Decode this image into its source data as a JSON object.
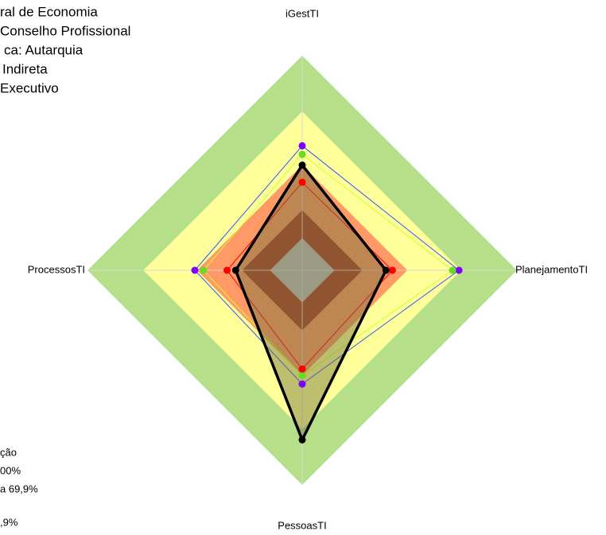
{
  "chart_data": {
    "type": "radar",
    "categories": [
      "iGestTI",
      "PlanejamentoTI",
      "PessoasTI",
      "ProcessosTI"
    ],
    "ylim": [
      0,
      100
    ],
    "bands": [
      {
        "value": 100,
        "color": "#b5df88"
      },
      {
        "value": 74,
        "color": "#ffff99"
      },
      {
        "value": 49,
        "color": "#ff9966"
      },
      {
        "value": 28,
        "color": "#b04028"
      },
      {
        "value": 15,
        "color": "#c0c0c0"
      }
    ],
    "series": [
      {
        "color": "#3355ff",
        "marker_color": "#8000ff",
        "values": [
          58,
          73,
          53,
          50
        ]
      },
      {
        "color": "#ccff33",
        "marker_color": "#66dd22",
        "values": [
          54,
          70,
          49,
          46
        ]
      },
      {
        "color": "#ff0000",
        "marker_color": "#ff0000",
        "values": [
          41,
          42,
          46,
          35
        ]
      },
      {
        "color": "#000000",
        "marker_color": "#000000",
        "fill": "rgba(110,110,60,0.45)",
        "values": [
          49,
          39,
          79,
          31
        ]
      }
    ],
    "annotations": [
      "ral de Economia",
      "Conselho Profissional",
      "ca: Autarquia",
      "Indireta",
      "Executivo"
    ],
    "legend_texts": [
      "ção",
      "00%",
      "a 69,9%",
      ",9%"
    ]
  }
}
